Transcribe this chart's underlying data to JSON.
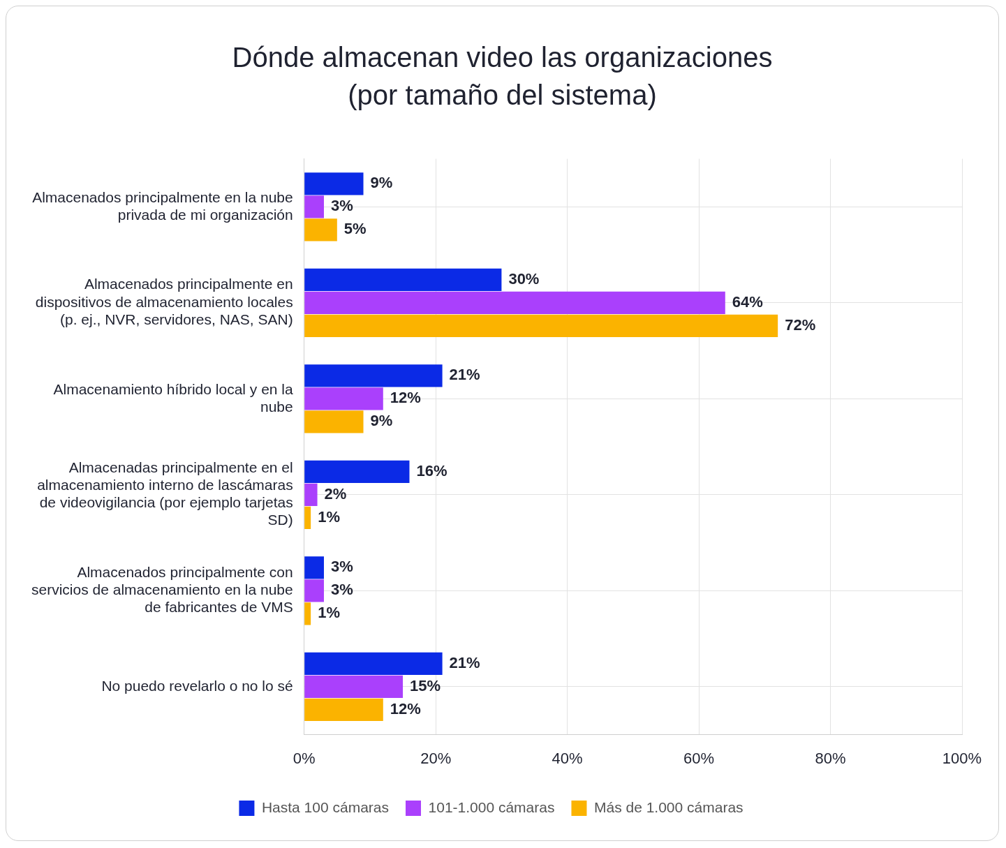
{
  "chart_data": {
    "type": "bar",
    "orientation": "horizontal",
    "title": "Dónde almacenan video las organizaciones (por tamaño del sistema)",
    "categories": [
      "Almacenados principalmente en la nube privada de mi organización",
      "Almacenados principalmente en dispositivos de almacenamiento locales (p. ej., NVR, servidores, NAS, SAN)",
      "Almacenamiento híbrido local y en la nube",
      "Almacenadas principalmente en el almacenamiento interno de lascámaras de videovigilancia (por ejemplo tarjetas SD)",
      "Almacenados principalmente con servicios de almacenamiento en la nube de fabricantes de VMS",
      "No puedo revelarlo o no lo sé"
    ],
    "series": [
      {
        "name": "Hasta 100 cámaras",
        "color": "#0b2ae6",
        "values": [
          9,
          30,
          21,
          16,
          3,
          21
        ],
        "value_labels": [
          "9%",
          "30%",
          "21%",
          "16%",
          "3%",
          "21%"
        ]
      },
      {
        "name": "101-1.000 cámaras",
        "color": "#aa40fc",
        "values": [
          3,
          64,
          12,
          2,
          3,
          15
        ],
        "value_labels": [
          "3%",
          "64%",
          "12%",
          "2%",
          "3%",
          "15%"
        ]
      },
      {
        "name": "Más de 1.000 cámaras",
        "color": "#fbb300",
        "values": [
          5,
          72,
          9,
          1,
          1,
          12
        ],
        "value_labels": [
          "5%",
          "72%",
          "9%",
          "1%",
          "1%",
          "12%"
        ]
      }
    ],
    "xlim": [
      0,
      100
    ],
    "xticks": [
      {
        "value": 0,
        "label": "0%"
      },
      {
        "value": 20,
        "label": "20%"
      },
      {
        "value": 40,
        "label": "40%"
      },
      {
        "value": 60,
        "label": "60%"
      },
      {
        "value": 80,
        "label": "80%"
      },
      {
        "value": 100,
        "label": "100%"
      }
    ],
    "grid": true,
    "legend": "bottom"
  }
}
